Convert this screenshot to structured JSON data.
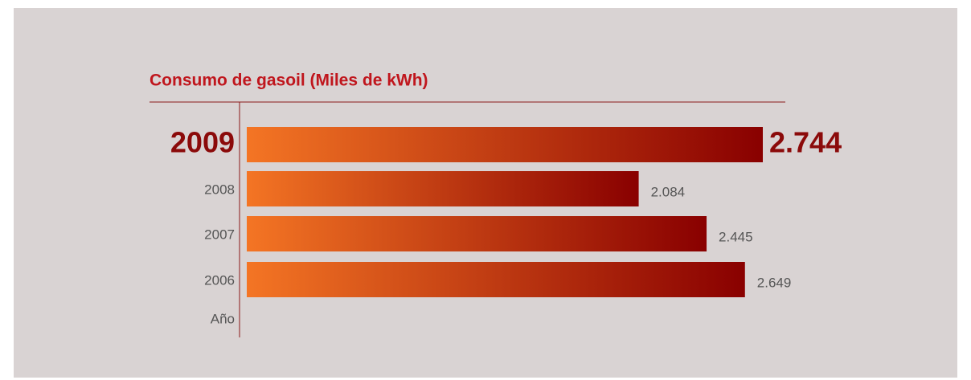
{
  "chart_data": {
    "type": "bar",
    "orientation": "horizontal",
    "title": "Consumo de gasoil (Miles de kWh)",
    "y_label": "Año",
    "categories": [
      "2009",
      "2008",
      "2007",
      "2006"
    ],
    "values": [
      2744,
      2084,
      2445,
      2649
    ],
    "value_labels": [
      "2.744",
      "2.084",
      "2.445",
      "2.649"
    ],
    "gradient": [
      "#f47524",
      "#890000"
    ]
  }
}
